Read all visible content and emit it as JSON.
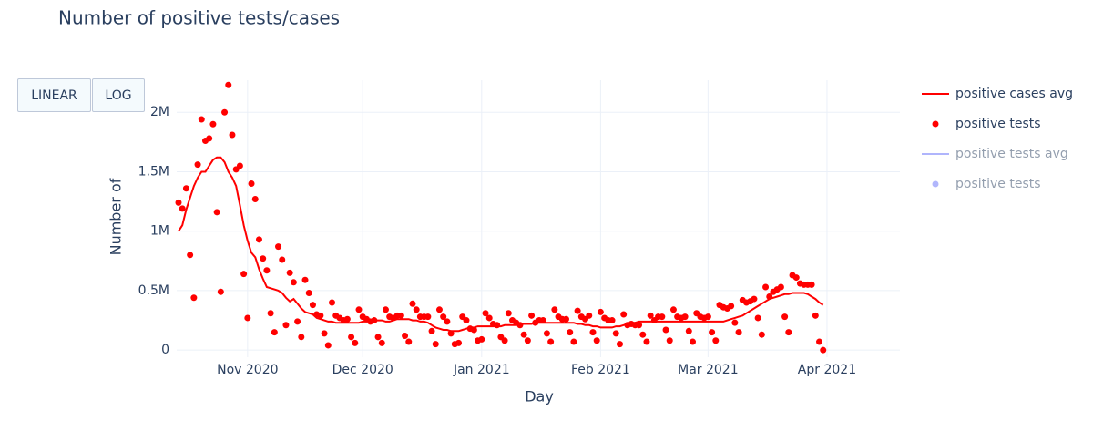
{
  "chart_data": {
    "type": "line-scatter",
    "title": "Number of positive tests/cases",
    "x_label": "Day",
    "y_label": "Number of",
    "buttons": [
      "LINEAR",
      "LOG"
    ],
    "categories": [
      null,
      null,
      null,
      null,
      null,
      null,
      null,
      null,
      null,
      null,
      null,
      null,
      null,
      null,
      null,
      null,
      null,
      null,
      "Nov 2020",
      null,
      null,
      null,
      null,
      null,
      null,
      null,
      null,
      null,
      null,
      null,
      null,
      null,
      null,
      null,
      null,
      null,
      null,
      null,
      null,
      null,
      null,
      null,
      null,
      null,
      null,
      null,
      null,
      null,
      "Dec 2020",
      null,
      null,
      null,
      null,
      null,
      null,
      null,
      null,
      null,
      null,
      null,
      null,
      null,
      null,
      null,
      null,
      null,
      null,
      null,
      null,
      null,
      null,
      null,
      null,
      null,
      null,
      null,
      null,
      null,
      null,
      "Jan 2021",
      null,
      null,
      null,
      null,
      null,
      null,
      null,
      null,
      null,
      null,
      null,
      null,
      null,
      null,
      null,
      null,
      null,
      null,
      null,
      null,
      null,
      null,
      null,
      null,
      null,
      null,
      null,
      null,
      null,
      null,
      "Feb 2021",
      null,
      null,
      null,
      null,
      null,
      null,
      null,
      null,
      null,
      null,
      null,
      null,
      null,
      null,
      null,
      null,
      null,
      null,
      null,
      null,
      null,
      null,
      null,
      null,
      null,
      null,
      null,
      "Mar 2021",
      null,
      null,
      null,
      null,
      null,
      null,
      null,
      null,
      null,
      null,
      null,
      null,
      null,
      null,
      null,
      null,
      null,
      null,
      null,
      null,
      null,
      null,
      null,
      null,
      null,
      null,
      null,
      null,
      null,
      null,
      "Apr 2021",
      null,
      null,
      null,
      null,
      null,
      null,
      null,
      null,
      null,
      null,
      null,
      null,
      null,
      null,
      null,
      null,
      null,
      null,
      null
    ],
    "series": [
      {
        "name": "positive cases avg",
        "mode": "lines",
        "color": "#ff0000",
        "values": [
          1000000,
          1050000,
          1180000,
          1280000,
          1380000,
          1450000,
          1500000,
          1500000,
          1550000,
          1600000,
          1620000,
          1620000,
          1580000,
          1500000,
          1450000,
          1380000,
          1220000,
          1050000,
          920000,
          820000,
          780000,
          680000,
          600000,
          530000,
          520000,
          510000,
          500000,
          480000,
          440000,
          410000,
          430000,
          390000,
          350000,
          320000,
          310000,
          300000,
          270000,
          260000,
          250000,
          240000,
          240000,
          230000,
          230000,
          230000,
          230000,
          230000,
          230000,
          230000,
          240000,
          240000,
          250000,
          250000,
          250000,
          250000,
          240000,
          240000,
          250000,
          260000,
          260000,
          260000,
          260000,
          250000,
          250000,
          240000,
          240000,
          230000,
          210000,
          190000,
          180000,
          170000,
          170000,
          160000,
          160000,
          160000,
          170000,
          180000,
          190000,
          190000,
          200000,
          200000,
          200000,
          200000,
          200000,
          200000,
          200000,
          210000,
          210000,
          210000,
          210000,
          220000,
          220000,
          220000,
          220000,
          230000,
          230000,
          230000,
          230000,
          230000,
          230000,
          230000,
          230000,
          230000,
          230000,
          230000,
          220000,
          220000,
          210000,
          210000,
          200000,
          200000,
          190000,
          190000,
          190000,
          190000,
          200000,
          200000,
          210000,
          220000,
          230000,
          230000,
          240000,
          240000,
          240000,
          240000,
          240000,
          240000,
          240000,
          240000,
          240000,
          240000,
          240000,
          240000,
          240000,
          240000,
          240000,
          240000,
          240000,
          240000,
          240000,
          240000,
          240000,
          240000,
          240000,
          250000,
          260000,
          270000,
          280000,
          290000,
          310000,
          330000,
          350000,
          370000,
          390000,
          410000,
          430000,
          440000,
          450000,
          460000,
          470000,
          470000,
          480000,
          480000,
          480000,
          480000,
          470000,
          450000,
          430000,
          400000,
          380000,
          null,
          null,
          null,
          null,
          null,
          null,
          null,
          null,
          null,
          null,
          null,
          null,
          null,
          null,
          null,
          null,
          null,
          null,
          null,
          null
        ]
      },
      {
        "name": "positive tests",
        "mode": "markers",
        "color": "#ff0000",
        "values": [
          1240000,
          1190000,
          1360000,
          800000,
          440000,
          1560000,
          1940000,
          1760000,
          1780000,
          1900000,
          1160000,
          490000,
          2000000,
          2230000,
          1810000,
          1520000,
          1550000,
          640000,
          270000,
          1400000,
          1270000,
          930000,
          770000,
          670000,
          310000,
          150000,
          870000,
          760000,
          210000,
          650000,
          570000,
          240000,
          110000,
          590000,
          480000,
          380000,
          300000,
          290000,
          140000,
          40000,
          400000,
          290000,
          270000,
          250000,
          260000,
          110000,
          60000,
          340000,
          280000,
          260000,
          240000,
          250000,
          110000,
          60000,
          340000,
          280000,
          270000,
          290000,
          290000,
          120000,
          70000,
          390000,
          340000,
          280000,
          280000,
          280000,
          160000,
          50000,
          340000,
          280000,
          240000,
          140000,
          50000,
          60000,
          280000,
          250000,
          180000,
          170000,
          80000,
          90000,
          310000,
          270000,
          220000,
          210000,
          110000,
          80000,
          310000,
          250000,
          230000,
          210000,
          130000,
          80000,
          290000,
          230000,
          250000,
          250000,
          140000,
          70000,
          340000,
          280000,
          260000,
          260000,
          150000,
          70000,
          330000,
          280000,
          260000,
          290000,
          150000,
          80000,
          320000,
          270000,
          250000,
          250000,
          140000,
          50000,
          300000,
          210000,
          220000,
          210000,
          210000,
          130000,
          70000,
          290000,
          250000,
          280000,
          280000,
          170000,
          80000,
          340000,
          280000,
          270000,
          280000,
          160000,
          70000,
          310000,
          280000,
          270000,
          280000,
          150000,
          80000,
          380000,
          360000,
          350000,
          370000,
          230000,
          150000,
          420000,
          400000,
          410000,
          430000,
          270000,
          130000,
          530000,
          450000,
          490000,
          510000,
          530000,
          280000,
          150000,
          630000,
          610000,
          560000,
          550000,
          550000,
          550000,
          290000,
          70000,
          0,
          null,
          null,
          null,
          null,
          null,
          null,
          null,
          null,
          null,
          null,
          null,
          null,
          null,
          null,
          null,
          null,
          null,
          null,
          null,
          null
        ]
      },
      {
        "name": "positive tests avg",
        "mode": "lines",
        "color": "#636efa",
        "visible": "legendonly"
      },
      {
        "name": "positive tests",
        "mode": "markers",
        "color": "#636efa",
        "visible": "legendonly"
      }
    ],
    "ylim": [
      -60000,
      2270000
    ],
    "yticks": [
      0,
      {
        "value": 500000,
        "label": "0.5M"
      },
      {
        "value": 1000000,
        "label": "1M"
      },
      {
        "value": 1500000,
        "label": "1.5M"
      },
      {
        "value": 2000000,
        "label": "2M"
      }
    ],
    "grid": true
  }
}
